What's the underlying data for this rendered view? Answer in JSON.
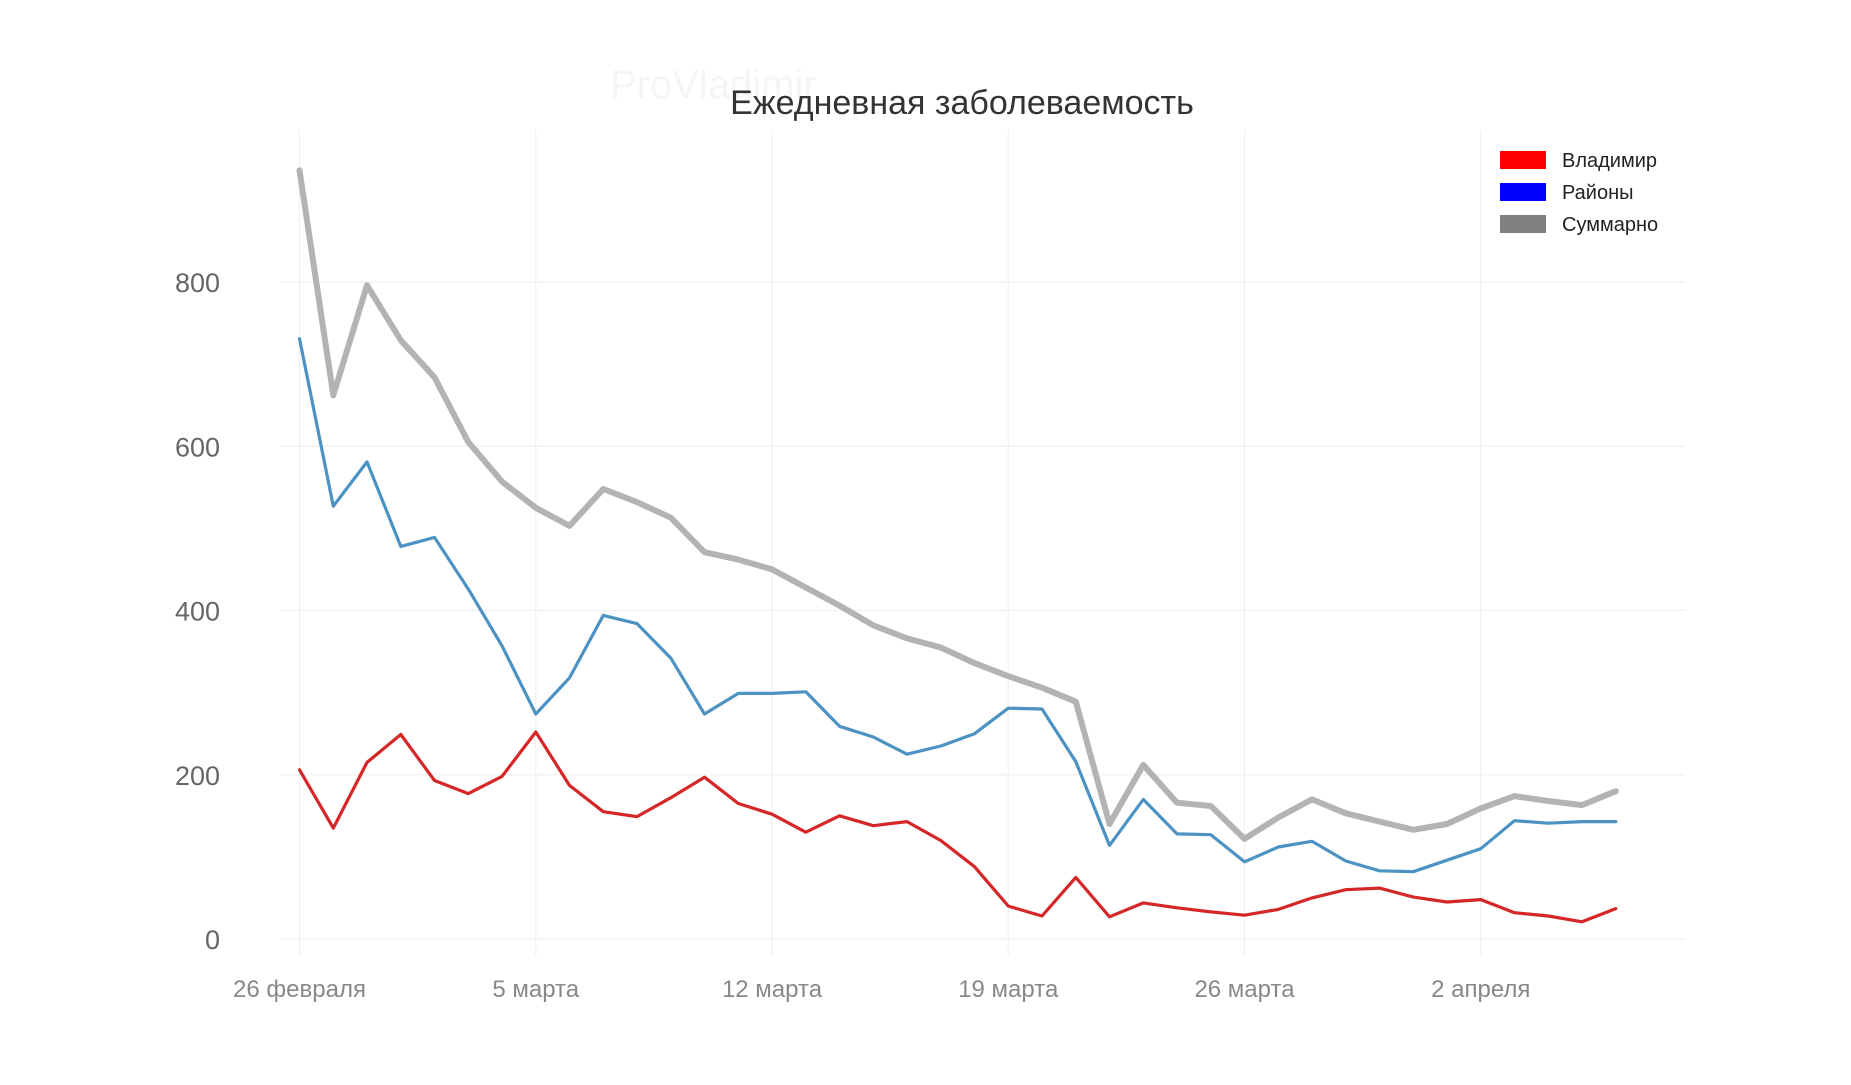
{
  "watermark": "ProVladimir",
  "chart_data": {
    "type": "line",
    "title": "Ежедневная заболеваемость",
    "xlabel": "",
    "ylabel": "",
    "x": [
      "2021-02-26",
      "2021-02-27",
      "2021-02-28",
      "2021-03-01",
      "2021-03-02",
      "2021-03-03",
      "2021-03-04",
      "2021-03-05",
      "2021-03-06",
      "2021-03-07",
      "2021-03-08",
      "2021-03-09",
      "2021-03-10",
      "2021-03-11",
      "2021-03-12",
      "2021-03-13",
      "2021-03-14",
      "2021-03-15",
      "2021-03-16",
      "2021-03-17",
      "2021-03-18",
      "2021-03-19",
      "2021-03-20",
      "2021-03-21",
      "2021-03-22",
      "2021-03-23",
      "2021-03-24",
      "2021-03-25",
      "2021-03-26",
      "2021-03-27",
      "2021-03-28",
      "2021-03-29",
      "2021-03-30",
      "2021-03-31",
      "2021-04-01",
      "2021-04-02",
      "2021-04-03",
      "2021-04-04",
      "2021-04-05",
      "2021-04-06"
    ],
    "x_ticks": [
      {
        "date": "2021-02-26",
        "label": "26 февраля"
      },
      {
        "date": "2021-03-05",
        "label": "5 марта"
      },
      {
        "date": "2021-03-12",
        "label": "12 марта"
      },
      {
        "date": "2021-03-19",
        "label": "19 марта"
      },
      {
        "date": "2021-03-26",
        "label": "26 марта"
      },
      {
        "date": "2021-04-02",
        "label": "2 апреля"
      }
    ],
    "y_ticks": [
      0,
      200,
      400,
      600,
      800
    ],
    "ylim": [
      -20,
      985
    ],
    "grid": true,
    "legend_position": "top-right",
    "legend": [
      {
        "name": "Владимир",
        "color": "#ff0000"
      },
      {
        "name": "Районы",
        "color": "#0000ff"
      },
      {
        "name": "Суммарно",
        "color": "#808080"
      }
    ],
    "series": [
      {
        "name": "Суммарно",
        "color": "#b3b3b3",
        "values": [
          936,
          662,
          796,
          729,
          684,
          605,
          557,
          525,
          503,
          548,
          532,
          513,
          471,
          462,
          450,
          428,
          406,
          382,
          366,
          355,
          336,
          320,
          306,
          289,
          140,
          212,
          166,
          162,
          122,
          148,
          170,
          153,
          143,
          133,
          140,
          159,
          174,
          168,
          163,
          180
        ]
      },
      {
        "name": "Районы",
        "color": "#4c92c3",
        "values": [
          731,
          527,
          581,
          478,
          489,
          426,
          357,
          274,
          318,
          394,
          384,
          342,
          274,
          299,
          299,
          301,
          259,
          246,
          225,
          235,
          250,
          281,
          280,
          216,
          114,
          170,
          128,
          127,
          94,
          112,
          119,
          95,
          83,
          82,
          96,
          110,
          144,
          141,
          143,
          143
        ]
      },
      {
        "name": "Владимир",
        "color": "#d62728",
        "values": [
          206,
          135,
          215,
          249,
          193,
          177,
          198,
          252,
          187,
          155,
          149,
          172,
          197,
          165,
          152,
          130,
          150,
          138,
          143,
          120,
          88,
          40,
          28,
          75,
          27,
          44,
          38,
          33,
          29,
          36,
          50,
          60,
          62,
          51,
          45,
          48,
          32,
          28,
          21,
          37
        ]
      }
    ]
  }
}
